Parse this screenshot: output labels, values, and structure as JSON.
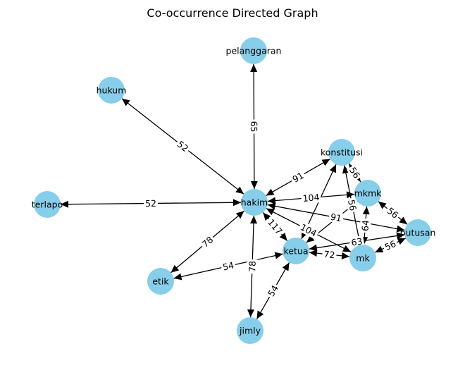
{
  "title": "Co-occurrence Directed Graph",
  "colors": {
    "node": "#87ceeb",
    "edge": "#000000",
    "label_bg": "#ffffff",
    "text": "#000000"
  },
  "nodes": [
    {
      "id": "pelanggaran",
      "label": "pelanggaran"
    },
    {
      "id": "hukum",
      "label": "hukum"
    },
    {
      "id": "terlapor",
      "label": "terlapo"
    },
    {
      "id": "hakim",
      "label": "hakim"
    },
    {
      "id": "konstitusi",
      "label": "konstitusi"
    },
    {
      "id": "mkmk",
      "label": "mkmk"
    },
    {
      "id": "putusan",
      "label": "putusan"
    },
    {
      "id": "ketua",
      "label": "ketua"
    },
    {
      "id": "mk",
      "label": "mk"
    },
    {
      "id": "etik",
      "label": "etik"
    },
    {
      "id": "jimly",
      "label": "jimly"
    }
  ],
  "edges": [
    {
      "source": "hakim",
      "target": "pelanggaran",
      "weight": "65"
    },
    {
      "source": "hakim",
      "target": "hukum",
      "weight": "52"
    },
    {
      "source": "hakim",
      "target": "terlapor",
      "weight": "52"
    },
    {
      "source": "hakim",
      "target": "konstitusi",
      "weight": "91"
    },
    {
      "source": "hakim",
      "target": "mkmk",
      "weight": "104"
    },
    {
      "source": "hakim",
      "target": "putusan",
      "weight": "91"
    },
    {
      "source": "hakim",
      "target": "ketua",
      "weight": "117"
    },
    {
      "source": "hakim",
      "target": "mk",
      "weight": "104"
    },
    {
      "source": "hakim",
      "target": "etik",
      "weight": "78"
    },
    {
      "source": "hakim",
      "target": "jimly",
      "weight": "78"
    },
    {
      "source": "konstitusi",
      "target": "mkmk",
      "weight": "56"
    },
    {
      "source": "konstitusi",
      "target": "mk",
      "weight": "56"
    },
    {
      "source": "konstitusi",
      "target": "ketua",
      "weight": ""
    },
    {
      "source": "mkmk",
      "target": "putusan",
      "weight": "56"
    },
    {
      "source": "mkmk",
      "target": "ketua",
      "weight": ""
    },
    {
      "source": "mkmk",
      "target": "mk",
      "weight": "64"
    },
    {
      "source": "putusan",
      "target": "ketua",
      "weight": "63"
    },
    {
      "source": "putusan",
      "target": "mk",
      "weight": "56"
    },
    {
      "source": "ketua",
      "target": "mk",
      "weight": "72"
    },
    {
      "source": "ketua",
      "target": "etik",
      "weight": "54"
    },
    {
      "source": "ketua",
      "target": "jimly",
      "weight": "54"
    }
  ]
}
